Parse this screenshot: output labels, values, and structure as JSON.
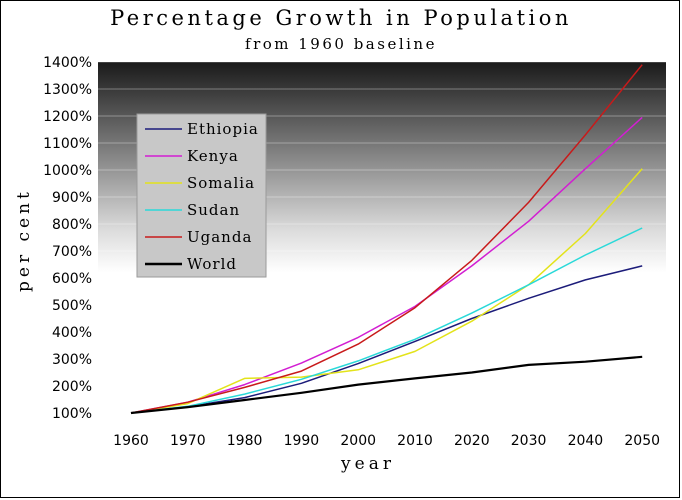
{
  "chart_data": {
    "type": "line",
    "title": "Percentage Growth in Population",
    "subtitle": "from 1960 baseline",
    "xlabel": "year",
    "ylabel": "per cent",
    "x": [
      1960,
      1970,
      1980,
      1990,
      2000,
      2010,
      2020,
      2030,
      2040,
      2050
    ],
    "ylim": [
      100,
      1400
    ],
    "yticks": [
      100,
      200,
      300,
      400,
      500,
      600,
      700,
      800,
      900,
      1000,
      1100,
      1200,
      1300,
      1400
    ],
    "ytick_labels": [
      "100%",
      "200%",
      "300%",
      "400%",
      "500%",
      "600%",
      "700%",
      "800%",
      "900%",
      "1000%",
      "1100%",
      "1200%",
      "1300%",
      "1400%"
    ],
    "xtick_labels": [
      "1960",
      "1970",
      "1980",
      "1990",
      "2000",
      "2010",
      "2020",
      "2030",
      "2040",
      "2050"
    ],
    "legend_position": "upper-left",
    "background": "dark-to-light vertical gradient",
    "series": [
      {
        "name": "Ethiopia",
        "color": "#1c1c7a",
        "values": [
          100,
          123,
          157,
          210,
          283,
          365,
          450,
          525,
          593,
          645
        ]
      },
      {
        "name": "Kenya",
        "color": "#d21ed2",
        "values": [
          100,
          140,
          205,
          285,
          380,
          495,
          645,
          810,
          1005,
          1195
        ]
      },
      {
        "name": "Somalia",
        "color": "#e3e31a",
        "values": [
          100,
          135,
          228,
          233,
          260,
          328,
          440,
          575,
          765,
          1005
        ]
      },
      {
        "name": "Sudan",
        "color": "#2ad9d9",
        "values": [
          100,
          125,
          170,
          225,
          293,
          373,
          470,
          575,
          685,
          785
        ]
      },
      {
        "name": "Uganda",
        "color": "#c81a1a",
        "values": [
          100,
          140,
          195,
          255,
          355,
          490,
          665,
          880,
          1130,
          1390
        ]
      },
      {
        "name": "World",
        "color": "#000000",
        "values": [
          100,
          122,
          148,
          175,
          205,
          228,
          250,
          278,
          290,
          308
        ]
      }
    ]
  }
}
